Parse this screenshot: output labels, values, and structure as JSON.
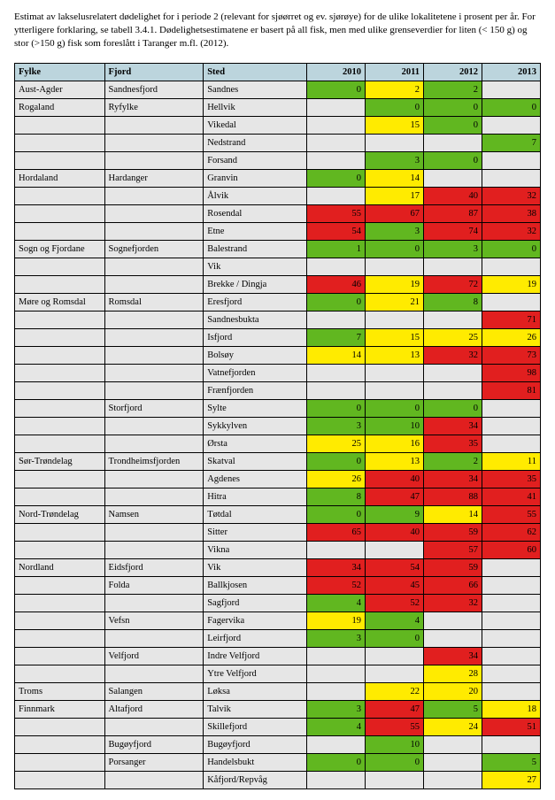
{
  "caption": "Estimat av lakselusrelatert dødelighet for i periode 2 (relevant for sjøørret og ev. sjørøye) for de ulike lokalitetene i prosent per år. For ytterligere forklaring, se tabell 3.4.1. Dødelighetsestimatene er basert på all fisk, men med ulike grenseverdier for liten (< 150 g) og stor (>150 g) fisk som foreslått i Taranger m.fl. (2012).",
  "headers": {
    "fylke": "Fylke",
    "fjord": "Fjord",
    "sted": "Sted",
    "y2010": "2010",
    "y2011": "2011",
    "y2012": "2012",
    "y2013": "2013"
  },
  "colors": {
    "blank": "#e6e6e6",
    "green": "#61b720",
    "yellow": "#ffeb00",
    "red": "#e11f1f"
  },
  "rows": [
    {
      "fylke": "Aust-Agder",
      "fjord": "Sandnesfjord",
      "sted": "Sandnes",
      "c": [
        [
          "0",
          "green"
        ],
        [
          "2",
          "yellow"
        ],
        [
          "2",
          "green"
        ],
        [
          "",
          "blank"
        ]
      ]
    },
    {
      "fylke": "Rogaland",
      "fjord": "Ryfylke",
      "sted": "Hellvik",
      "c": [
        [
          "",
          "blank"
        ],
        [
          "0",
          "green"
        ],
        [
          "0",
          "green"
        ],
        [
          "0",
          "green"
        ]
      ]
    },
    {
      "fylke": "",
      "fjord": "",
      "sted": "Vikedal",
      "c": [
        [
          "",
          "blank"
        ],
        [
          "15",
          "yellow"
        ],
        [
          "0",
          "green"
        ],
        [
          "",
          "blank"
        ]
      ]
    },
    {
      "fylke": "",
      "fjord": "",
      "sted": "Nedstrand",
      "c": [
        [
          "",
          "blank"
        ],
        [
          "",
          "blank"
        ],
        [
          "",
          "blank"
        ],
        [
          "7",
          "green"
        ]
      ]
    },
    {
      "fylke": "",
      "fjord": "",
      "sted": "Forsand",
      "c": [
        [
          "",
          "blank"
        ],
        [
          "3",
          "green"
        ],
        [
          "0",
          "green"
        ],
        [
          "",
          "blank"
        ]
      ]
    },
    {
      "fylke": "Hordaland",
      "fjord": "Hardanger",
      "sted": "Granvin",
      "c": [
        [
          "0",
          "green"
        ],
        [
          "14",
          "yellow"
        ],
        [
          "",
          "blank"
        ],
        [
          "",
          "blank"
        ]
      ]
    },
    {
      "fylke": "",
      "fjord": "",
      "sted": "Ålvik",
      "c": [
        [
          "",
          "blank"
        ],
        [
          "17",
          "yellow"
        ],
        [
          "40",
          "red"
        ],
        [
          "32",
          "red"
        ]
      ]
    },
    {
      "fylke": "",
      "fjord": "",
      "sted": "Rosendal",
      "c": [
        [
          "55",
          "red"
        ],
        [
          "67",
          "red"
        ],
        [
          "87",
          "red"
        ],
        [
          "38",
          "red"
        ]
      ]
    },
    {
      "fylke": "",
      "fjord": "",
      "sted": "Etne",
      "c": [
        [
          "54",
          "red"
        ],
        [
          "3",
          "green"
        ],
        [
          "74",
          "red"
        ],
        [
          "32",
          "red"
        ]
      ]
    },
    {
      "fylke": "Sogn og Fjordane",
      "fjord": "Sognefjorden",
      "sted": "Balestrand",
      "c": [
        [
          "1",
          "green"
        ],
        [
          "0",
          "green"
        ],
        [
          "3",
          "green"
        ],
        [
          "0",
          "green"
        ]
      ]
    },
    {
      "fylke": "",
      "fjord": "",
      "sted": "Vik",
      "c": [
        [
          "",
          "blank"
        ],
        [
          "",
          "blank"
        ],
        [
          "",
          "blank"
        ],
        [
          "",
          "blank"
        ]
      ]
    },
    {
      "fylke": "",
      "fjord": "",
      "sted": "Brekke / Dingja",
      "c": [
        [
          "46",
          "red"
        ],
        [
          "19",
          "yellow"
        ],
        [
          "72",
          "red"
        ],
        [
          "19",
          "yellow"
        ]
      ]
    },
    {
      "fylke": "Møre og Romsdal",
      "fjord": "Romsdal",
      "sted": "Eresfjord",
      "c": [
        [
          "0",
          "green"
        ],
        [
          "21",
          "yellow"
        ],
        [
          "8",
          "green"
        ],
        [
          "",
          "blank"
        ]
      ]
    },
    {
      "fylke": "",
      "fjord": "",
      "sted": "Sandnesbukta",
      "c": [
        [
          "",
          "blank"
        ],
        [
          "",
          "blank"
        ],
        [
          "",
          "blank"
        ],
        [
          "71",
          "red"
        ]
      ]
    },
    {
      "fylke": "",
      "fjord": "",
      "sted": "Isfjord",
      "c": [
        [
          "7",
          "green"
        ],
        [
          "15",
          "yellow"
        ],
        [
          "25",
          "yellow"
        ],
        [
          "26",
          "yellow"
        ]
      ]
    },
    {
      "fylke": "",
      "fjord": "",
      "sted": "Bolsøy",
      "c": [
        [
          "14",
          "yellow"
        ],
        [
          "13",
          "yellow"
        ],
        [
          "32",
          "red"
        ],
        [
          "73",
          "red"
        ]
      ]
    },
    {
      "fylke": "",
      "fjord": "",
      "sted": "Vatnefjorden",
      "c": [
        [
          "",
          "blank"
        ],
        [
          "",
          "blank"
        ],
        [
          "",
          "blank"
        ],
        [
          "98",
          "red"
        ]
      ]
    },
    {
      "fylke": "",
      "fjord": "",
      "sted": "Frænfjorden",
      "c": [
        [
          "",
          "blank"
        ],
        [
          "",
          "blank"
        ],
        [
          "",
          "blank"
        ],
        [
          "81",
          "red"
        ]
      ]
    },
    {
      "fylke": "",
      "fjord": "Storfjord",
      "sted": "Sylte",
      "c": [
        [
          "0",
          "green"
        ],
        [
          "0",
          "green"
        ],
        [
          "0",
          "green"
        ],
        [
          "",
          "blank"
        ]
      ]
    },
    {
      "fylke": "",
      "fjord": "",
      "sted": "Sykkylven",
      "c": [
        [
          "3",
          "green"
        ],
        [
          "10",
          "green"
        ],
        [
          "34",
          "red"
        ],
        [
          "",
          "blank"
        ]
      ]
    },
    {
      "fylke": "",
      "fjord": "",
      "sted": "Ørsta",
      "c": [
        [
          "25",
          "yellow"
        ],
        [
          "16",
          "yellow"
        ],
        [
          "35",
          "red"
        ],
        [
          "",
          "blank"
        ]
      ]
    },
    {
      "fylke": "Sør-Trøndelag",
      "fjord": "Trondheimsfjorden",
      "sted": "Skatval",
      "c": [
        [
          "0",
          "green"
        ],
        [
          "13",
          "yellow"
        ],
        [
          "2",
          "green"
        ],
        [
          "11",
          "yellow"
        ]
      ]
    },
    {
      "fylke": "",
      "fjord": "",
      "sted": "Agdenes",
      "c": [
        [
          "26",
          "yellow"
        ],
        [
          "40",
          "red"
        ],
        [
          "34",
          "red"
        ],
        [
          "35",
          "red"
        ]
      ]
    },
    {
      "fylke": "",
      "fjord": "",
      "sted": "Hitra",
      "c": [
        [
          "8",
          "green"
        ],
        [
          "47",
          "red"
        ],
        [
          "88",
          "red"
        ],
        [
          "41",
          "red"
        ]
      ]
    },
    {
      "fylke": "Nord-Trøndelag",
      "fjord": "Namsen",
      "sted": "Tøtdal",
      "c": [
        [
          "0",
          "green"
        ],
        [
          "9",
          "green"
        ],
        [
          "14",
          "yellow"
        ],
        [
          "55",
          "red"
        ]
      ]
    },
    {
      "fylke": "",
      "fjord": "",
      "sted": "Sitter",
      "c": [
        [
          "65",
          "red"
        ],
        [
          "40",
          "red"
        ],
        [
          "59",
          "red"
        ],
        [
          "62",
          "red"
        ]
      ]
    },
    {
      "fylke": "",
      "fjord": "",
      "sted": "Vikna",
      "c": [
        [
          "",
          "blank"
        ],
        [
          "",
          "blank"
        ],
        [
          "57",
          "red"
        ],
        [
          "60",
          "red"
        ]
      ]
    },
    {
      "fylke": "Nordland",
      "fjord": "Eidsfjord",
      "sted": "Vik",
      "c": [
        [
          "34",
          "red"
        ],
        [
          "54",
          "red"
        ],
        [
          "59",
          "red"
        ],
        [
          "",
          "blank"
        ]
      ]
    },
    {
      "fylke": "",
      "fjord": "Folda",
      "sted": "Ballkjosen",
      "c": [
        [
          "52",
          "red"
        ],
        [
          "45",
          "red"
        ],
        [
          "66",
          "red"
        ],
        [
          "",
          "blank"
        ]
      ]
    },
    {
      "fylke": "",
      "fjord": "",
      "sted": "Sagfjord",
      "c": [
        [
          "4",
          "green"
        ],
        [
          "52",
          "red"
        ],
        [
          "32",
          "red"
        ],
        [
          "",
          "blank"
        ]
      ]
    },
    {
      "fylke": "",
      "fjord": "Vefsn",
      "sted": "Fagervika",
      "c": [
        [
          "19",
          "yellow"
        ],
        [
          "4",
          "green"
        ],
        [
          "",
          "blank"
        ],
        [
          "",
          "blank"
        ]
      ]
    },
    {
      "fylke": "",
      "fjord": "",
      "sted": "Leirfjord",
      "c": [
        [
          "3",
          "green"
        ],
        [
          "0",
          "green"
        ],
        [
          "",
          "blank"
        ],
        [
          "",
          "blank"
        ]
      ]
    },
    {
      "fylke": "",
      "fjord": "Velfjord",
      "sted": "Indre Velfjord",
      "c": [
        [
          "",
          "blank"
        ],
        [
          "",
          "blank"
        ],
        [
          "34",
          "red"
        ],
        [
          "",
          "blank"
        ]
      ]
    },
    {
      "fylke": "",
      "fjord": "",
      "sted": "Ytre Velfjord",
      "c": [
        [
          "",
          "blank"
        ],
        [
          "",
          "blank"
        ],
        [
          "28",
          "yellow"
        ],
        [
          "",
          "blank"
        ]
      ]
    },
    {
      "fylke": "Troms",
      "fjord": "Salangen",
      "sted": "Løksa",
      "c": [
        [
          "",
          "blank"
        ],
        [
          "22",
          "yellow"
        ],
        [
          "20",
          "yellow"
        ],
        [
          "",
          "blank"
        ]
      ]
    },
    {
      "fylke": "Finnmark",
      "fjord": "Altafjord",
      "sted": "Talvik",
      "c": [
        [
          "3",
          "green"
        ],
        [
          "47",
          "red"
        ],
        [
          "5",
          "green"
        ],
        [
          "18",
          "yellow"
        ]
      ]
    },
    {
      "fylke": "",
      "fjord": "",
      "sted": "Skillefjord",
      "c": [
        [
          "4",
          "green"
        ],
        [
          "55",
          "red"
        ],
        [
          "24",
          "yellow"
        ],
        [
          "51",
          "red"
        ]
      ]
    },
    {
      "fylke": "",
      "fjord": "Bugøyfjord",
      "sted": "Bugøyfjord",
      "c": [
        [
          "",
          "blank"
        ],
        [
          "10",
          "green"
        ],
        [
          "",
          "blank"
        ],
        [
          "",
          "blank"
        ]
      ]
    },
    {
      "fylke": "",
      "fjord": "Porsanger",
      "sted": "Handelsbukt",
      "c": [
        [
          "0",
          "green"
        ],
        [
          "0",
          "green"
        ],
        [
          "",
          "blank"
        ],
        [
          "5",
          "green"
        ]
      ]
    },
    {
      "fylke": "",
      "fjord": "",
      "sted": "Kåfjord/Repvåg",
      "c": [
        [
          "",
          "blank"
        ],
        [
          "",
          "blank"
        ],
        [
          "",
          "blank"
        ],
        [
          "27",
          "yellow"
        ]
      ]
    }
  ]
}
